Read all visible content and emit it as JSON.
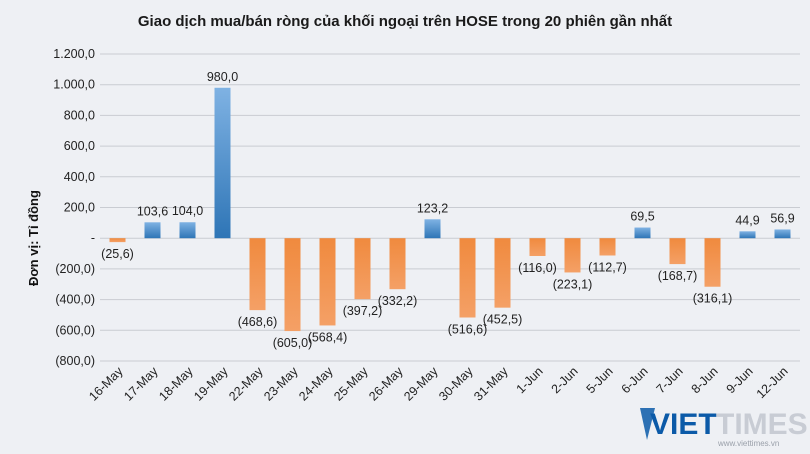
{
  "chart_data": {
    "type": "bar",
    "title": "Giao dịch mua/bán ròng của khối ngoại trên HOSE trong 20 phiên gần nhất",
    "ylabel": "Đơn vị: Tỉ đồng",
    "xlabel": "",
    "ylim": [
      -800,
      1200
    ],
    "yticks": [
      1200,
      1000,
      800,
      600,
      400,
      200,
      0,
      -200,
      -400,
      -600,
      -800
    ],
    "ytick_labels": [
      "1.200,0",
      "1.000,0",
      "800,0",
      "600,0",
      "400,0",
      "200,0",
      "-",
      "(200,0)",
      "(400,0)",
      "(600,0)",
      "(800,0)"
    ],
    "grid": true,
    "categories": [
      "16-May",
      "17-May",
      "18-May",
      "19-May",
      "22-May",
      "23-May",
      "24-May",
      "25-May",
      "26-May",
      "29-May",
      "30-May",
      "31-May",
      "1-Jun",
      "2-Jun",
      "5-Jun",
      "6-Jun",
      "7-Jun",
      "8-Jun",
      "9-Jun",
      "12-Jun"
    ],
    "values": [
      -25.6,
      103.6,
      104.0,
      980.0,
      -468.6,
      -605.0,
      -568.4,
      -397.2,
      -332.2,
      123.2,
      -516.6,
      -452.5,
      -116.0,
      -223.1,
      -112.7,
      69.5,
      -168.7,
      -316.1,
      44.9,
      56.9
    ],
    "data_labels": [
      "(25,6)",
      "103,6",
      "104,0",
      "980,0",
      "(468,6)",
      "(605,0)",
      "(568,4)",
      "(397,2)",
      "(332,2)",
      "123,2",
      "(516,6)",
      "(452,5)",
      "(116,0)",
      "(223,1)",
      "(112,7)",
      "69,5",
      "(168,7)",
      "(316,1)",
      "44,9",
      "56,9"
    ],
    "colors": {
      "positive": "#5b9bd5",
      "positive_dark": "#2e75b6",
      "negative": "#ed7d31",
      "grid": "#c9ccd2",
      "background": "#eef0f4"
    }
  },
  "watermark": {
    "brand_a": "VIET",
    "brand_b": "TIMES",
    "url": "www.viettimes.vn",
    "color_a": "#0b5aa8",
    "color_b": "#c8ccd4"
  }
}
